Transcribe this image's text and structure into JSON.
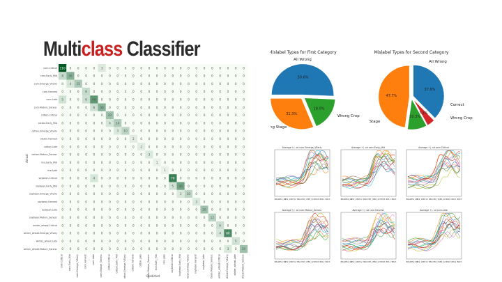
{
  "slide": {
    "title_part1": "Multi",
    "title_part2": "class",
    "title_part3": " Classifier",
    "title_color": "#2b2b2b",
    "accent_color": "#c8201e"
  },
  "chart_data": [
    {
      "type": "heatmap",
      "xlabel": "Predicted",
      "ylabel": "Actual",
      "labels": [
        "corn.Critical",
        "corn.Early_Mid",
        "corn.Emerge_VEarly",
        "corn.Harvest",
        "corn.Late",
        "corn.Mature_Senesc",
        "cotton.Critical",
        "cotton.Early_Mid",
        "cotton.Emerge_VEarly",
        "cotton.Harvest",
        "cotton.Late",
        "cotton.Mature_Senesc",
        "rice.Early_Mid",
        "rice.Late",
        "soybean.Critical",
        "soybean.Early_Mid",
        "soybean.Emerge_VEarly",
        "soybean.Harvest",
        "soybean.Late",
        "soybean.Mature_Senesc",
        "winter_wheat.Critical",
        "winter_wheat.Emerge_VEarly",
        "winter_wheat.Late",
        "winter_wheat.Mature_Senesc"
      ],
      "diagonal": [
        110,
        30,
        15,
        8,
        48,
        30,
        20,
        14,
        10,
        2,
        2,
        3,
        1,
        1,
        70,
        40,
        10,
        3,
        20,
        12,
        6,
        60,
        5,
        20
      ],
      "off_diagonal": [
        {
          "row": 0,
          "col": 5,
          "value": 3
        },
        {
          "row": 1,
          "col": 0,
          "value": 8
        },
        {
          "row": 2,
          "col": 1,
          "value": 4
        },
        {
          "row": 4,
          "col": 0,
          "value": 5
        },
        {
          "row": 4,
          "col": 3,
          "value": 6
        },
        {
          "row": 5,
          "col": 4,
          "value": 6
        },
        {
          "row": 7,
          "col": 6,
          "value": 4
        },
        {
          "row": 8,
          "col": 7,
          "value": 3
        },
        {
          "row": 14,
          "col": 4,
          "value": 4
        },
        {
          "row": 15,
          "col": 14,
          "value": 5
        },
        {
          "row": 16,
          "col": 15,
          "value": 3
        },
        {
          "row": 21,
          "col": 20,
          "value": 4
        },
        {
          "row": 23,
          "col": 21,
          "value": 3
        }
      ]
    },
    {
      "type": "pie",
      "title": "Mislabel Types for First Category",
      "slices": [
        {
          "label": "All Wrong",
          "value": 50.6,
          "display": "50.6%",
          "color": "#1f77b4"
        },
        {
          "label": "Wrong Crop",
          "value": 18.0,
          "display": "18.0%",
          "color": "#2ca02c"
        },
        {
          "label": "Wrong Stage",
          "value": 31.3,
          "display": "31.3%",
          "color": "#ff7f0e"
        }
      ]
    },
    {
      "type": "pie",
      "title": "Mislabel Types for Second Category",
      "slices": [
        {
          "label": "All Wrong",
          "value": 37.6,
          "display": "37.6%",
          "color": "#1f77b4"
        },
        {
          "label": "Correct",
          "value": 4.3,
          "display": "4.3%",
          "color": "#d62728"
        },
        {
          "label": "Wrong Crop",
          "value": 10.3,
          "display": "10.3%",
          "color": "#2ca02c"
        },
        {
          "label": "Wrong Stage",
          "value": 47.7,
          "display": "47.7%",
          "color": "#ff7f0e"
        }
      ]
    },
    {
      "type": "line",
      "titles": [
        "Average +/- sd corn.Emerge_VEarly",
        "Average +/- sd corn.Early_Mid",
        "Average +/- sd corn.Critical",
        "Average +/- sd corn.Mature_Senesc",
        "Average +/- sd corn.Harvest",
        "Average +/- sd corn.Late"
      ],
      "x_ticks": [
        "B8A2",
        "B52_09",
        "B52_18",
        "B712",
        "B8C2",
        "B8_15",
        "B8_22",
        "B803",
        "B811",
        "B823"
      ],
      "series_colors": [
        "#1f77b4",
        "#ff7f0e",
        "#2ca02c",
        "#d62728",
        "#9467bd",
        "#8c564b",
        "#e377c2",
        "#7f7f7f",
        "#bcbd22",
        "#17becf"
      ]
    }
  ]
}
